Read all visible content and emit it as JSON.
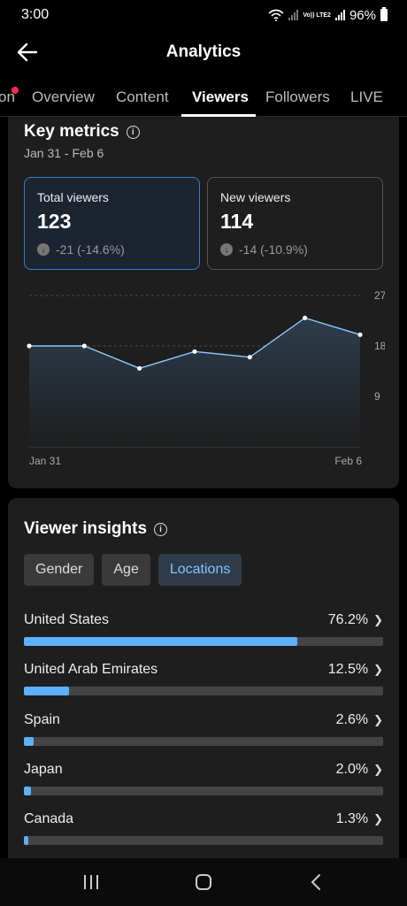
{
  "status": {
    "time": "3:00",
    "battery": "96%",
    "volte": "Vo)) LTE2"
  },
  "header": {
    "title": "Analytics"
  },
  "tabs": [
    {
      "label": "on"
    },
    {
      "label": "Overview"
    },
    {
      "label": "Content"
    },
    {
      "label": "Viewers"
    },
    {
      "label": "Followers"
    },
    {
      "label": "LIVE"
    }
  ],
  "key_metrics": {
    "title": "Key metrics",
    "date_range": "Jan 31 - Feb 6",
    "metrics": [
      {
        "label": "Total viewers",
        "value": "123",
        "change": "-21 (-14.6%)",
        "selected": true
      },
      {
        "label": "New viewers",
        "value": "114",
        "change": "-14 (-10.9%)",
        "selected": false
      }
    ]
  },
  "chart_data": {
    "type": "area",
    "x": [
      "Jan 31",
      "Feb 1",
      "Feb 2",
      "Feb 3",
      "Feb 4",
      "Feb 5",
      "Feb 6"
    ],
    "xtick_labels": [
      "Jan 31",
      "Feb 6"
    ],
    "values": [
      18,
      18,
      14,
      17,
      16,
      23,
      20
    ],
    "yticks": [
      "27",
      "18",
      "9"
    ],
    "ylim": [
      0,
      27
    ],
    "grid": true,
    "colors": {
      "line": "#8cc8ff",
      "fill_top": "#2e3d4c",
      "fill_bottom": "#1e1e1e"
    }
  },
  "viewer_insights": {
    "title": "Viewer insights",
    "filters": [
      {
        "label": "Gender",
        "active": false
      },
      {
        "label": "Age",
        "active": false
      },
      {
        "label": "Locations",
        "active": true
      }
    ],
    "locations": [
      {
        "name": "United States",
        "pct_label": "76.2%",
        "pct": 76.2
      },
      {
        "name": "United Arab Emirates",
        "pct_label": "12.5%",
        "pct": 12.5
      },
      {
        "name": "Spain",
        "pct_label": "2.6%",
        "pct": 2.6
      },
      {
        "name": "Japan",
        "pct_label": "2.0%",
        "pct": 2.0
      },
      {
        "name": "Canada",
        "pct_label": "1.3%",
        "pct": 1.3
      }
    ]
  },
  "colors": {
    "accent": "#5cb0ff",
    "selected_border": "#2f7fd0",
    "notification": "#fe2c55"
  },
  "nav_bar": {
    "icons": [
      "recent-apps-icon",
      "home-icon",
      "back-icon"
    ]
  }
}
